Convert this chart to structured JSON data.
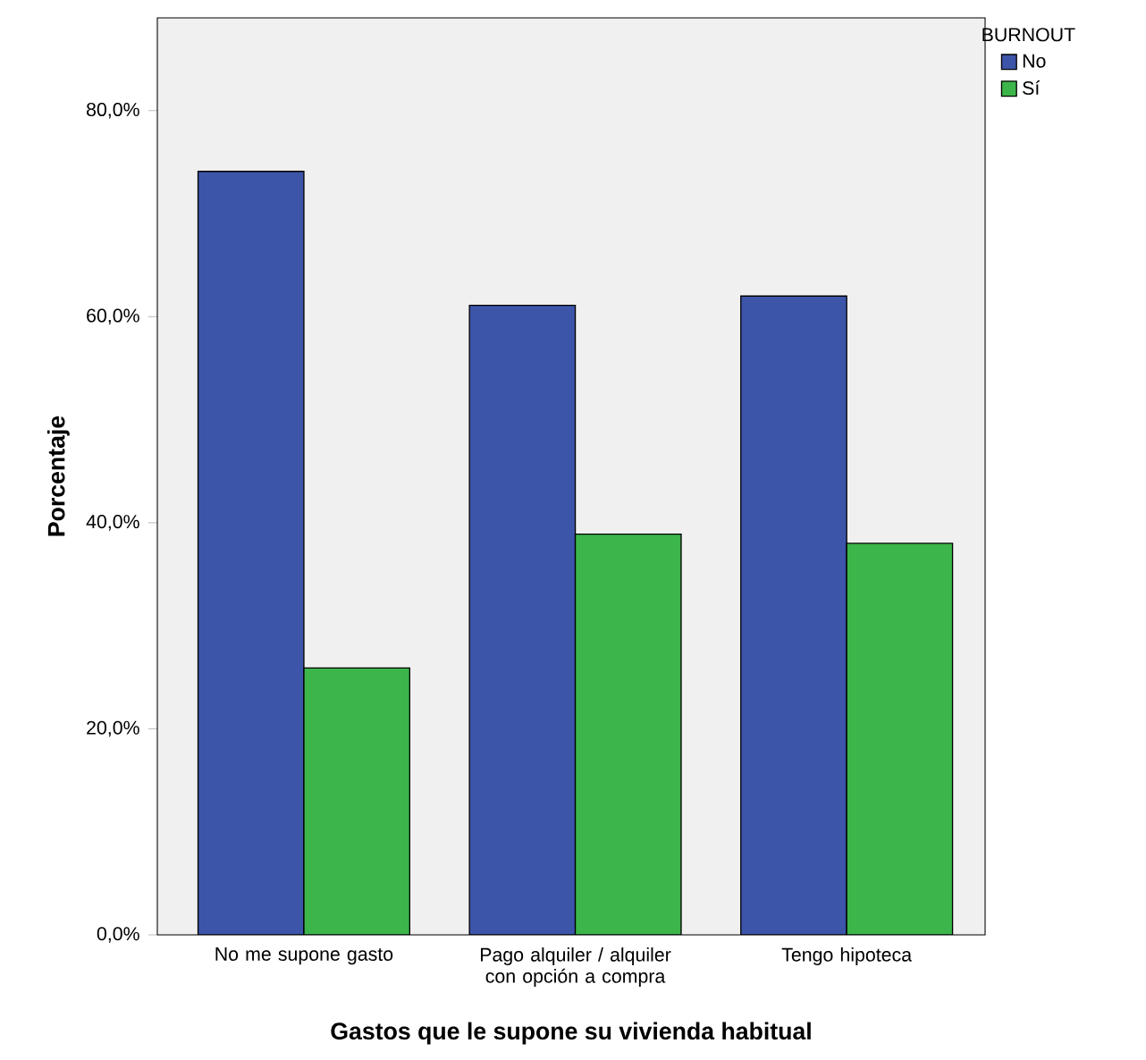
{
  "chart_data": {
    "type": "bar",
    "xlabel": "Gastos que le supone su vivienda habitual",
    "ylabel": "Porcentaje",
    "legend_title": "BURNOUT",
    "categories": [
      "No me supone gasto",
      "Pago alquiler / alquiler con opción a compra",
      "Tengo hipoteca"
    ],
    "series": [
      {
        "name": "No",
        "color": "#3d55a9",
        "values": [
          74.1,
          61.1,
          62.0
        ]
      },
      {
        "name": "Sí",
        "color": "#3cb64b",
        "values": [
          25.9,
          38.9,
          38.0
        ]
      }
    ],
    "ylim": [
      0,
      89
    ],
    "yticks": [
      {
        "value": 0,
        "label": "0,0%"
      },
      {
        "value": 20,
        "label": "20,0%"
      },
      {
        "value": 40,
        "label": "40,0%"
      },
      {
        "value": 60,
        "label": "60,0%"
      },
      {
        "value": 80,
        "label": "80,0%"
      }
    ],
    "grid": false,
    "legend": "top right"
  }
}
